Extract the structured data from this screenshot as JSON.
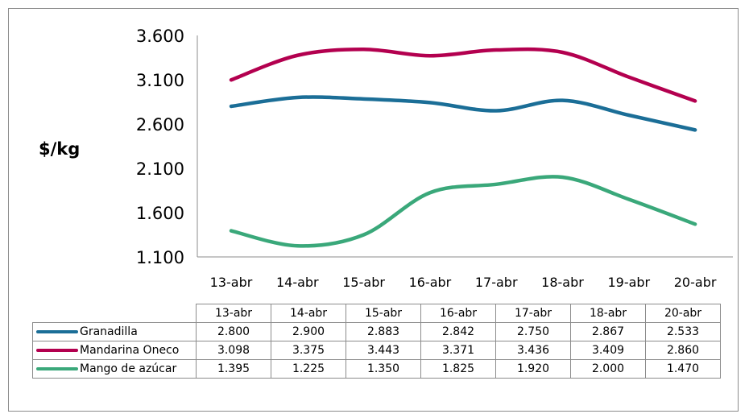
{
  "chart_data": {
    "type": "line",
    "title": "",
    "ylabel": "$/kg",
    "xlabel": "",
    "ylim": [
      1100,
      3600
    ],
    "yticks": [
      1100,
      1600,
      2100,
      2600,
      3100,
      3600
    ],
    "ytick_labels": [
      "1.100",
      "1.600",
      "2.100",
      "2.600",
      "3.100",
      "3.600"
    ],
    "x": [
      "13-abr",
      "14-abr",
      "15-abr",
      "16-abr",
      "17-abr",
      "18-abr",
      "19-abr",
      "20-abr"
    ],
    "grid": false,
    "legend": "data-table-below",
    "series": [
      {
        "name": "Granadilla",
        "color": "#1b6e97",
        "values": [
          2800,
          2900,
          2883,
          2842,
          2750,
          2867,
          2700,
          2533
        ],
        "table_values": [
          "2.800",
          "2.900",
          "2.883",
          "2.842",
          "2.750",
          "2.867",
          "2.533"
        ]
      },
      {
        "name": "Mandarina Oneco",
        "color": "#b3004f",
        "values": [
          3098,
          3375,
          3443,
          3371,
          3436,
          3409,
          3130,
          2860
        ],
        "table_values": [
          "3.098",
          "3.375",
          "3.443",
          "3.371",
          "3.436",
          "3.409",
          "2.860"
        ]
      },
      {
        "name": "Mango de azúcar",
        "color": "#3aa87a",
        "values": [
          1395,
          1225,
          1350,
          1825,
          1920,
          2000,
          1750,
          1470
        ],
        "table_values": [
          "1.395",
          "1.225",
          "1.350",
          "1.825",
          "1.920",
          "2.000",
          "1.470"
        ]
      }
    ],
    "table_columns": [
      "13-abr",
      "14-abr",
      "15-abr",
      "16-abr",
      "17-abr",
      "18-abr",
      "20-abr"
    ]
  }
}
